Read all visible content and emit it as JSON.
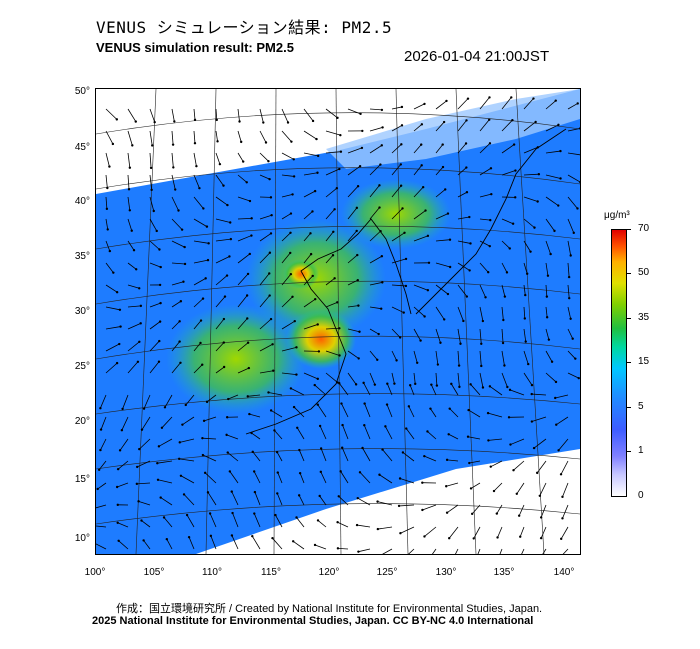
{
  "header": {
    "title_ja": "VENUS シミュレーション結果: PM2.5",
    "title_en": "VENUS simulation result: PM2.5",
    "timestamp": "2026-01-04 21:00JST"
  },
  "map": {
    "lat_ticks": [
      "50°",
      "45°",
      "40°",
      "35°",
      "30°",
      "25°",
      "20°",
      "15°",
      "10°"
    ],
    "lon_ticks": [
      "100°",
      "105°",
      "110°",
      "115°",
      "120°",
      "125°",
      "130°",
      "135°",
      "140°"
    ],
    "extent": {
      "lon": [
        100,
        142
      ],
      "lat": [
        9,
        51
      ]
    },
    "colors": {
      "low": "#1e6cff",
      "mid": "#20c040",
      "high": "#ff8000",
      "max": "#e00000",
      "nodata": "#f0f2ff"
    }
  },
  "colorbar": {
    "unit": "μg/m³",
    "labels": [
      "70",
      "50",
      "35",
      "15",
      "5",
      "1",
      "0"
    ]
  },
  "footer": {
    "credit_ja_en": "作成：国立環境研究所 / Created by National Institute for Environmental Studies, Japan.",
    "copyright": "2025 National Institute for Environmental Studies, Japan. CC BY-NC 4.0 International"
  }
}
